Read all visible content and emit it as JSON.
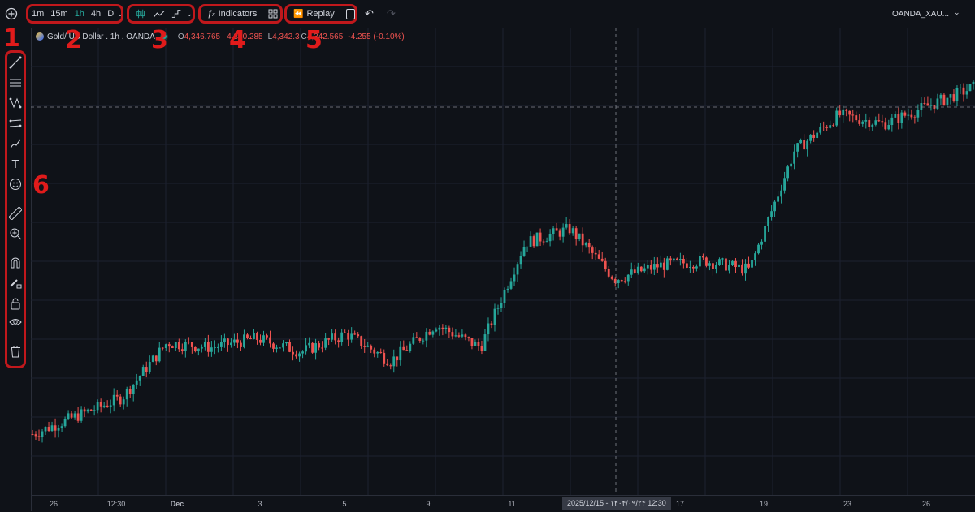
{
  "toolbar": {
    "add_symbol_icon": "plus-circle-icon",
    "intervals": [
      {
        "label": "1m",
        "active": false
      },
      {
        "label": "15m",
        "active": false
      },
      {
        "label": "1h",
        "active": true
      },
      {
        "label": "4h",
        "active": false
      },
      {
        "label": "D",
        "active": false
      }
    ],
    "indicators_label": "Indicators",
    "replay_label": "Replay",
    "symbol_label": "OANDA_XAU..."
  },
  "annotations": [
    "1",
    "2",
    "3",
    "4",
    "5",
    "6"
  ],
  "legend": {
    "symbol_prefix": "Gold ",
    "symbol_rest": " / US Dollar . 1h . OANDA",
    "open_label": "O",
    "open": "4,346.765",
    "high": "4,350.285",
    "low_label": "L",
    "low": "4,342.3",
    "close_label": "C",
    "close": "4,342.565",
    "change": "-4.255 (-0.10%)"
  },
  "drawing_tools": [
    "trend-line-icon",
    "horizontal-lines-icon",
    "pattern-icon",
    "channel-icon",
    "brush-icon",
    "text-icon",
    "emoji-icon",
    "ruler-icon",
    "zoom-in-icon",
    "magnet-icon",
    "lock-drawing-icon",
    "lock-icon",
    "eye-icon",
    "trash-icon"
  ],
  "x_axis": {
    "ticks": [
      "26",
      "12:30",
      "Dec",
      "3",
      "5",
      "9",
      "11",
      "17",
      "19",
      "23",
      "26"
    ],
    "crosshair_label": "2025/12/15 - ۱۴۰۴/۰۹/۲۴   12:30"
  },
  "colors": {
    "up": "#26a69a",
    "down": "#ef5350",
    "background": "#0f1218",
    "highlight": "#c0181c"
  },
  "chart_data": {
    "type": "candlestick",
    "symbol": "Gold Spot / US Dollar",
    "interval": "1h",
    "x_categories": [
      "26",
      "12:30",
      "Dec",
      "3",
      "5",
      "9",
      "11",
      "15",
      "17",
      "19",
      "23",
      "26"
    ],
    "close_path_approx": [
      4120,
      4140,
      4160,
      4220,
      4215,
      4225,
      4210,
      4230,
      4200,
      4240,
      4215,
      4330,
      4345,
      4290,
      4305,
      4310,
      4300,
      4430,
      4470,
      4460,
      4480,
      4500
    ],
    "last": {
      "open": 4346.765,
      "high": 4350.285,
      "low": 4342.3,
      "close": 4342.565,
      "change": -4.255,
      "change_pct": -0.1
    },
    "grid": true,
    "crosshair": "2025/12/15 12:30"
  }
}
